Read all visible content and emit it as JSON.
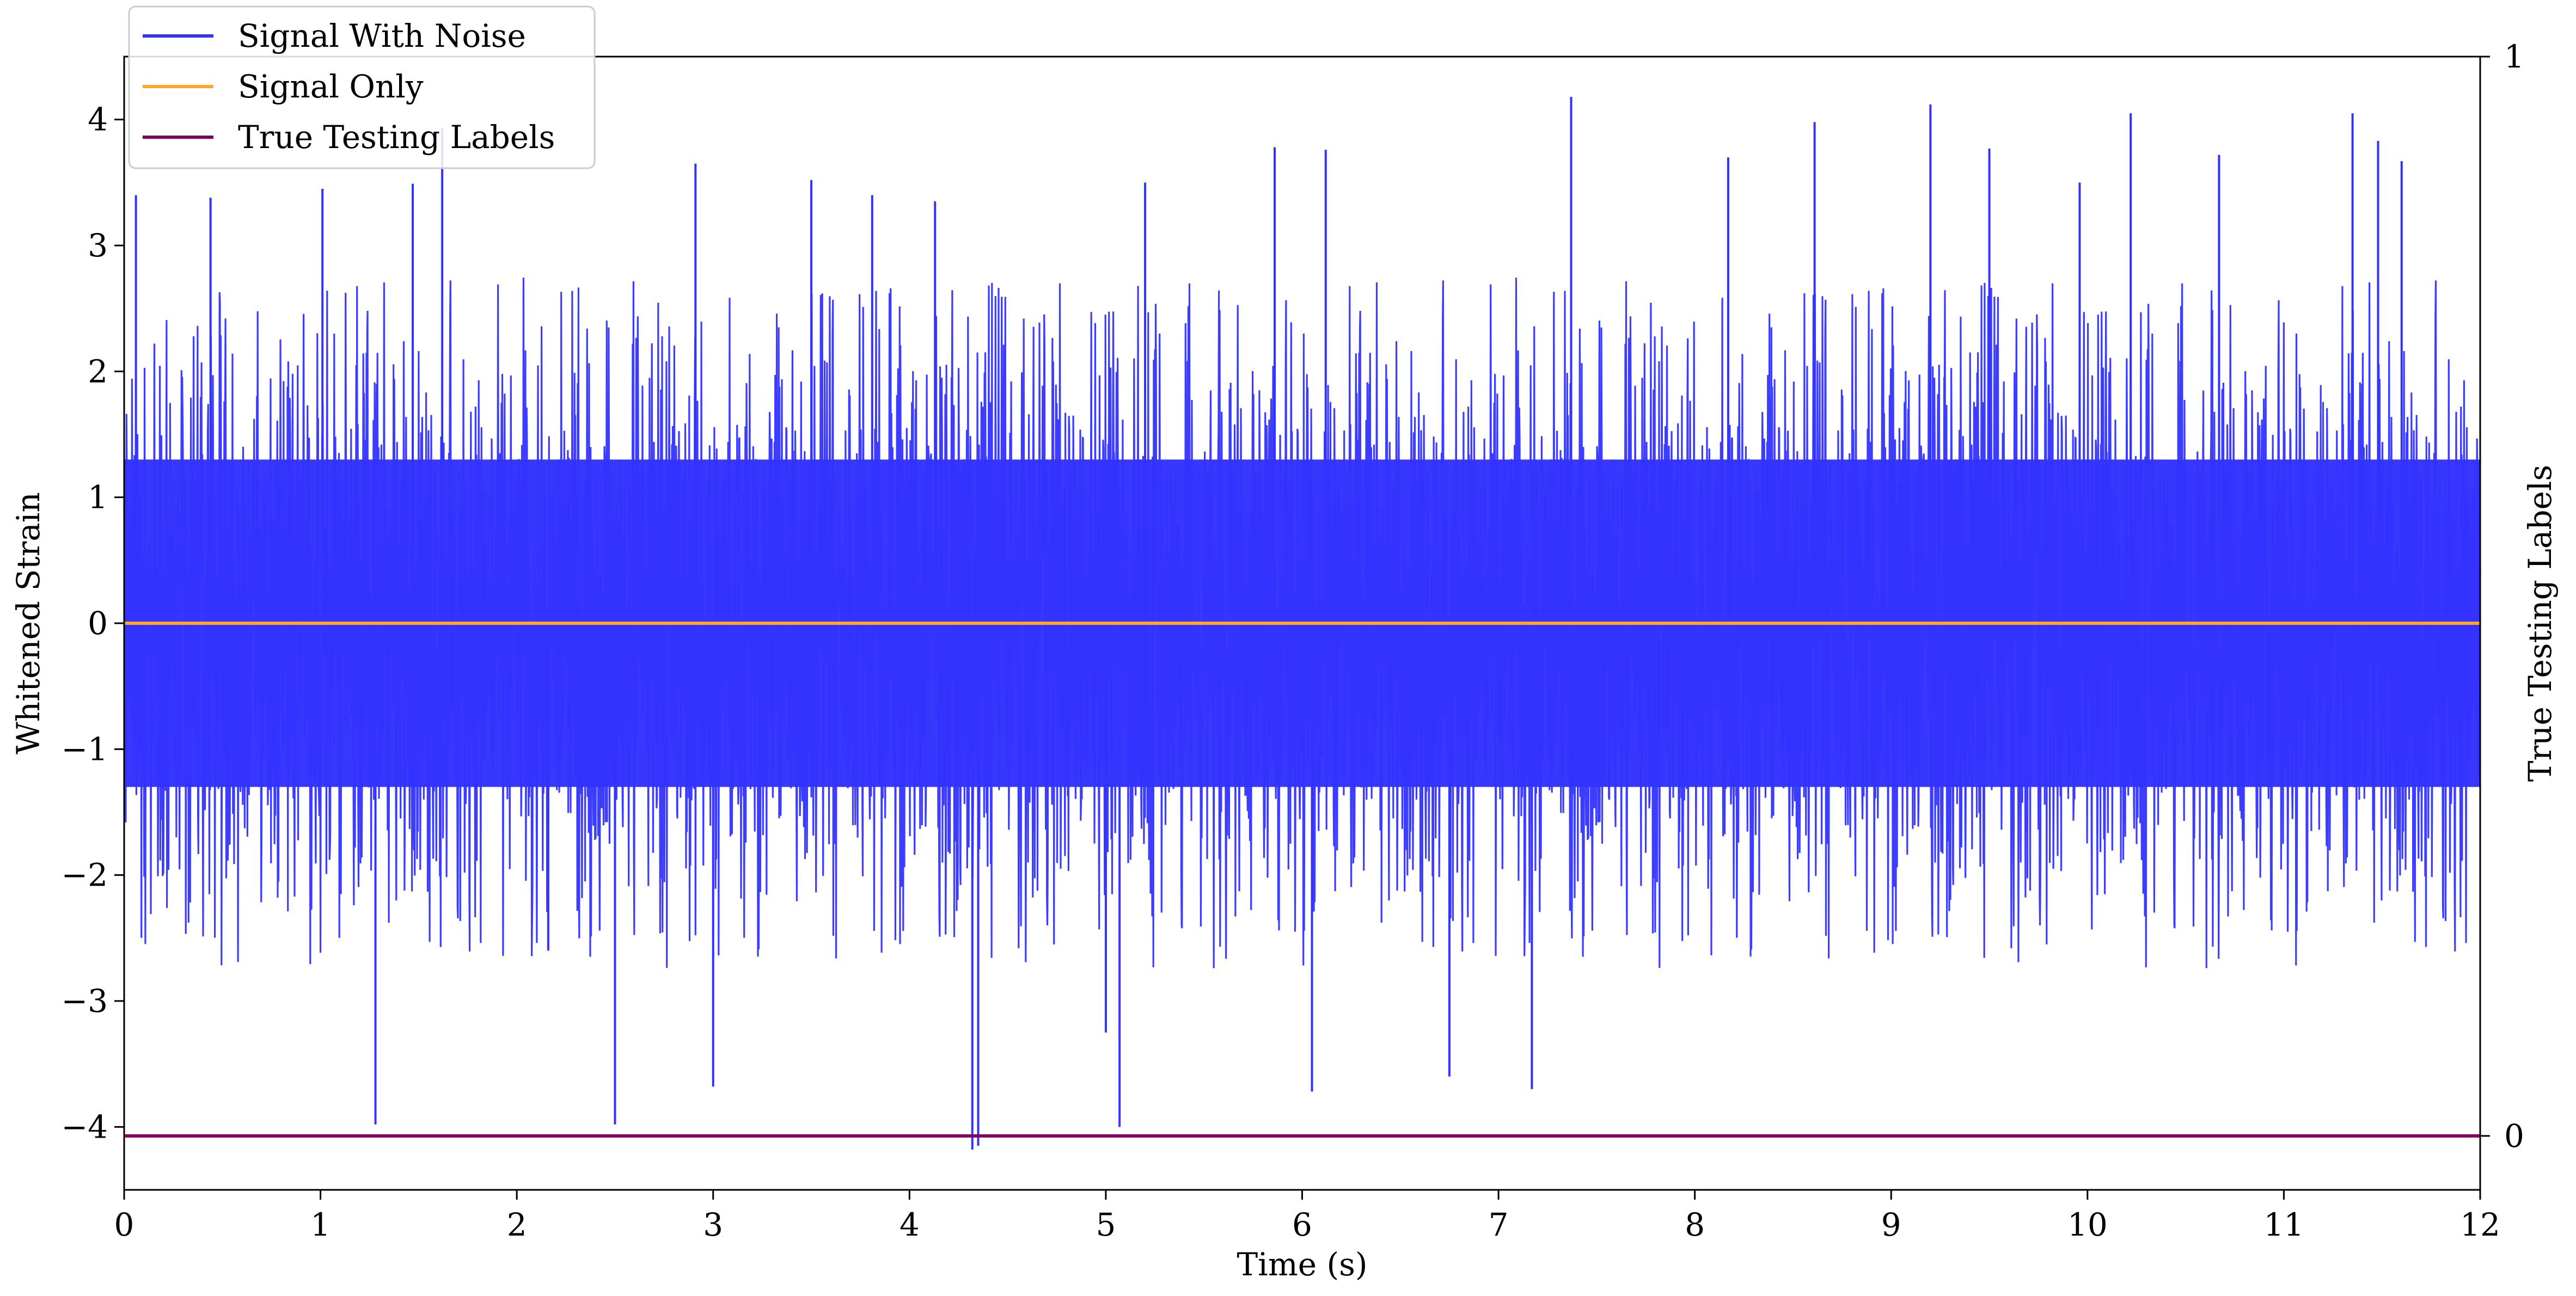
{
  "chart_data": {
    "type": "line",
    "title": "",
    "xlabel": "Time (s)",
    "ylabel": "Whitened Strain",
    "ylabel_right": "True Testing Labels",
    "xlim": [
      0,
      12
    ],
    "ylim": [
      -4.5,
      4.5
    ],
    "ylim_right": [
      -0.05,
      1.0
    ],
    "x_ticks": [
      "0",
      "1",
      "2",
      "3",
      "4",
      "5",
      "6",
      "7",
      "8",
      "9",
      "10",
      "11",
      "12"
    ],
    "y_ticks": [
      "4",
      "3",
      "2",
      "1",
      "0",
      "−1",
      "−2",
      "−3",
      "−4"
    ],
    "y_ticks_right": [
      "1",
      "0"
    ],
    "grid": false,
    "legend_position": "top-left",
    "legend": [
      {
        "label": "Signal With Noise",
        "color": "#3333ff"
      },
      {
        "label": "Signal Only",
        "color": "#ffa726"
      },
      {
        "label": "True Testing Labels",
        "color": "#800060"
      }
    ],
    "series": [
      {
        "name": "Signal With Noise",
        "color": "#3333ff",
        "axis": "left",
        "noise_envelope": {
          "typical_max": 2.5,
          "typical_min": -2.5,
          "peak_max": 4.2,
          "peak_min": -4.2
        },
        "x": [
          0.06,
          0.44,
          1.01,
          1.28,
          1.47,
          1.62,
          2.16,
          2.5,
          2.91,
          3.0,
          3.5,
          3.81,
          4.13,
          4.32,
          4.35,
          5.0,
          5.07,
          5.2,
          5.86,
          6.05,
          6.12,
          6.75,
          7.17,
          7.37,
          8.17,
          8.61,
          9.2,
          9.5,
          9.96,
          10.22,
          10.67,
          11.35,
          11.48,
          11.6
        ],
        "y": [
          3.4,
          3.38,
          3.45,
          -3.98,
          3.49,
          3.93,
          -2.6,
          -3.98,
          3.65,
          -3.68,
          3.52,
          3.4,
          3.35,
          -4.18,
          -4.15,
          -3.25,
          -4.0,
          3.5,
          3.78,
          -3.72,
          3.76,
          -3.6,
          -3.7,
          4.18,
          3.7,
          3.98,
          4.12,
          3.77,
          3.5,
          4.05,
          3.72,
          4.05,
          3.83,
          3.67
        ]
      },
      {
        "name": "Signal Only",
        "color": "#ffa726",
        "axis": "left",
        "x": [
          0,
          12
        ],
        "y": [
          0,
          0
        ]
      },
      {
        "name": "True Testing Labels",
        "color": "#800060",
        "axis": "right",
        "x": [
          0,
          12
        ],
        "y": [
          0,
          0
        ]
      }
    ]
  }
}
